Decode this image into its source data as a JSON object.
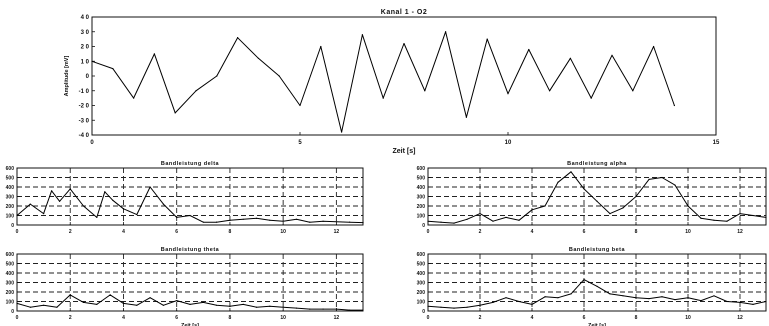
{
  "chart_data": [
    {
      "id": "main",
      "type": "line",
      "title": "Kanal 1 - O2",
      "xlabel": "Zeit [s]",
      "ylabel": "Amplitude [mV]",
      "xlim": [
        0,
        15
      ],
      "ylim": [
        -40,
        40
      ],
      "xticks": [
        "0",
        "5",
        "10",
        "15"
      ],
      "xtick_values": [
        0,
        5,
        10,
        15
      ],
      "yticks": [
        "4 0",
        "3 0",
        "2 0",
        "1 0",
        "0",
        "-1 0",
        "-2 0",
        "-3 0",
        "-4 0"
      ],
      "ytick_values": [
        40,
        30,
        20,
        10,
        0,
        -10,
        -20,
        -30,
        -40
      ],
      "grid": false,
      "x": [
        0,
        0.5,
        1,
        1.5,
        2,
        2.5,
        3,
        3.5,
        4,
        4.5,
        5,
        5.5,
        6,
        6.5,
        7,
        7.5,
        8,
        8.5,
        9,
        9.5,
        10,
        10.5,
        11,
        11.5,
        12,
        12.5,
        13,
        13.5,
        14
      ],
      "y": [
        10,
        5,
        -15,
        15,
        -25,
        -10,
        0,
        26,
        12,
        0,
        -20,
        20,
        -38,
        28,
        -15,
        22,
        -10,
        30,
        -28,
        25,
        -12,
        18,
        -10,
        12,
        -15,
        14,
        -10,
        20,
        -20
      ]
    },
    {
      "id": "beta",
      "type": "line",
      "title": "Bandleistung delta",
      "xlabel": "",
      "xlim": [
        0,
        13
      ],
      "ylim": [
        0,
        600
      ],
      "xticks": [
        "0",
        "2",
        "4",
        "6",
        "8",
        "10",
        "12"
      ],
      "xtick_values": [
        0,
        2,
        4,
        6,
        8,
        10,
        12
      ],
      "yticks": [
        "600",
        "500",
        "400",
        "300",
        "200",
        "100",
        "0"
      ],
      "ytick_values": [
        600,
        500,
        400,
        300,
        200,
        100,
        0
      ],
      "grid": true,
      "x": [
        0,
        0.5,
        1,
        1.3,
        1.6,
        2,
        2.5,
        3,
        3.3,
        3.6,
        4,
        4.5,
        5,
        5.5,
        6,
        6.5,
        7,
        7.5,
        8,
        8.5,
        9,
        9.5,
        10,
        10.5,
        11,
        11.5,
        12,
        12.5,
        13
      ],
      "y": [
        100,
        220,
        120,
        360,
        250,
        380,
        200,
        80,
        350,
        260,
        170,
        110,
        400,
        220,
        80,
        100,
        30,
        30,
        50,
        60,
        70,
        50,
        40,
        60,
        30,
        40,
        35,
        30,
        25
      ]
    },
    {
      "id": "alpha",
      "type": "line",
      "title": "Bandleistung alpha",
      "xlabel": "",
      "xlim": [
        0,
        13
      ],
      "ylim": [
        0,
        600
      ],
      "xticks": [
        "0",
        "2",
        "4",
        "6",
        "8",
        "10",
        "12"
      ],
      "xtick_values": [
        0,
        2,
        4,
        6,
        8,
        10,
        12
      ],
      "yticks": [
        "600",
        "500",
        "400",
        "300",
        "200",
        "100",
        "0"
      ],
      "ytick_values": [
        600,
        500,
        400,
        300,
        200,
        100,
        0
      ],
      "grid": true,
      "x": [
        0,
        0.5,
        1,
        1.5,
        2,
        2.5,
        3,
        3.5,
        4,
        4.5,
        5,
        5.5,
        6,
        6.5,
        7,
        7.5,
        8,
        8.5,
        9,
        9.5,
        10,
        10.5,
        11,
        11.5,
        12,
        12.5,
        13
      ],
      "y": [
        40,
        30,
        20,
        60,
        120,
        40,
        80,
        50,
        160,
        200,
        450,
        560,
        380,
        250,
        120,
        180,
        300,
        480,
        500,
        420,
        200,
        70,
        50,
        40,
        120,
        100,
        80
      ]
    },
    {
      "id": "theta",
      "type": "line",
      "title": "Bandleistung theta",
      "xlabel": "Zeit [s]",
      "xlim": [
        0,
        13
      ],
      "ylim": [
        0,
        600
      ],
      "xticks": [
        "0",
        "2",
        "4",
        "6",
        "8",
        "10",
        "12"
      ],
      "xtick_values": [
        0,
        2,
        4,
        6,
        8,
        10,
        12
      ],
      "yticks": [
        "600",
        "500",
        "400",
        "300",
        "200",
        "100",
        "0"
      ],
      "ytick_values": [
        600,
        500,
        400,
        300,
        200,
        100,
        0
      ],
      "grid": true,
      "x": [
        0,
        0.5,
        1,
        1.5,
        2,
        2.5,
        3,
        3.5,
        4,
        4.5,
        5,
        5.5,
        6,
        6.5,
        7,
        7.5,
        8,
        8.5,
        9,
        9.5,
        10,
        10.5,
        11,
        11.5,
        12,
        12.5,
        13
      ],
      "y": [
        80,
        40,
        60,
        40,
        170,
        90,
        70,
        170,
        80,
        60,
        140,
        60,
        110,
        70,
        90,
        60,
        50,
        70,
        40,
        50,
        40,
        30,
        20,
        20,
        20,
        10,
        10
      ]
    },
    {
      "id": "beta2",
      "type": "line",
      "title": "Bandleistung beta",
      "xlabel": "Zeit [s]",
      "xlim": [
        0,
        13
      ],
      "ylim": [
        0,
        600
      ],
      "xticks": [
        "0",
        "2",
        "4",
        "6",
        "8",
        "10",
        "12"
      ],
      "xtick_values": [
        0,
        2,
        4,
        6,
        8,
        10,
        12
      ],
      "yticks": [
        "600",
        "500",
        "400",
        "300",
        "200",
        "100",
        "0"
      ],
      "ytick_values": [
        600,
        500,
        400,
        300,
        200,
        100,
        0
      ],
      "grid": true,
      "x": [
        0,
        0.5,
        1,
        1.5,
        2,
        2.5,
        3,
        3.5,
        4,
        4.5,
        5,
        5.5,
        6,
        6.5,
        7,
        7.5,
        8,
        8.5,
        9,
        9.5,
        10,
        10.5,
        11,
        11.5,
        12,
        12.5,
        13
      ],
      "y": [
        50,
        40,
        30,
        40,
        60,
        90,
        140,
        100,
        70,
        150,
        140,
        180,
        330,
        260,
        180,
        160,
        140,
        130,
        150,
        120,
        140,
        110,
        160,
        100,
        90,
        70,
        100
      ]
    }
  ]
}
